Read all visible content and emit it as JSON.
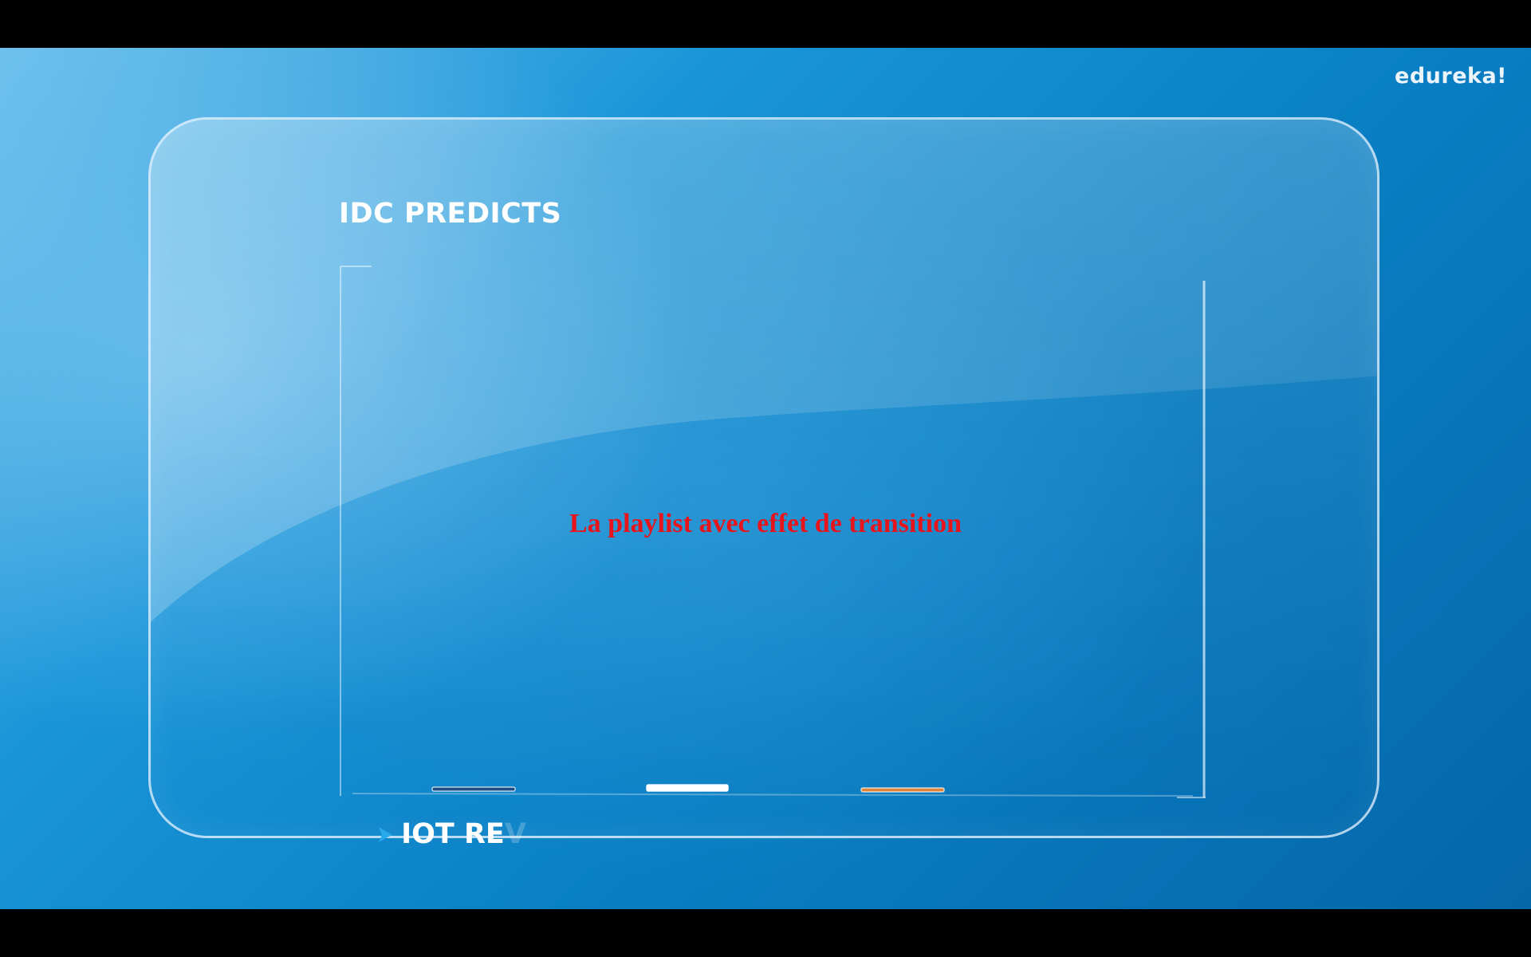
{
  "brand": {
    "logo_text": "edureka!"
  },
  "slide": {
    "title": "IDC PREDICTS",
    "footer_visible": "IOT RE",
    "footer_fading": "V"
  },
  "overlay": {
    "caption": "La playlist avec effet de transition"
  },
  "colors": {
    "background_primary": "#0a7fc4",
    "background_light": "#6cc0ec",
    "caption_red": "#e8141c",
    "bar_dark_blue": "#1d4f86",
    "bar_white": "#ffffff",
    "bar_orange": "#e0843a",
    "arrow_blue": "#27a9ec"
  },
  "icons": {
    "footer_arrow": "chevron-right-icon"
  }
}
